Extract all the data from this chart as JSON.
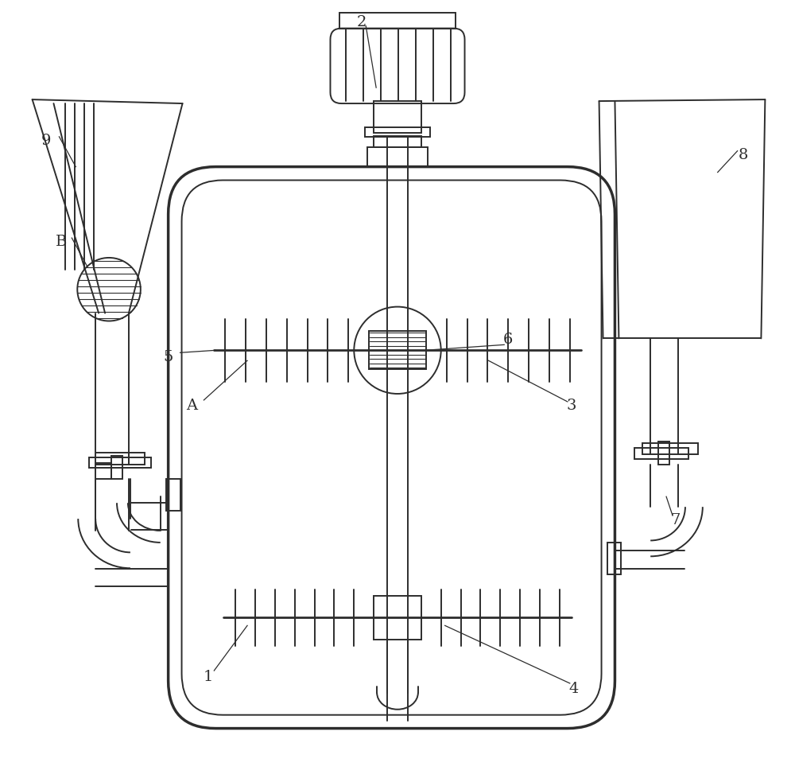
{
  "bg_color": "#ffffff",
  "lc": "#2d2d2d",
  "lw": 1.4,
  "tlw": 2.0,
  "fig_w": 10.0,
  "fig_h": 9.83
}
